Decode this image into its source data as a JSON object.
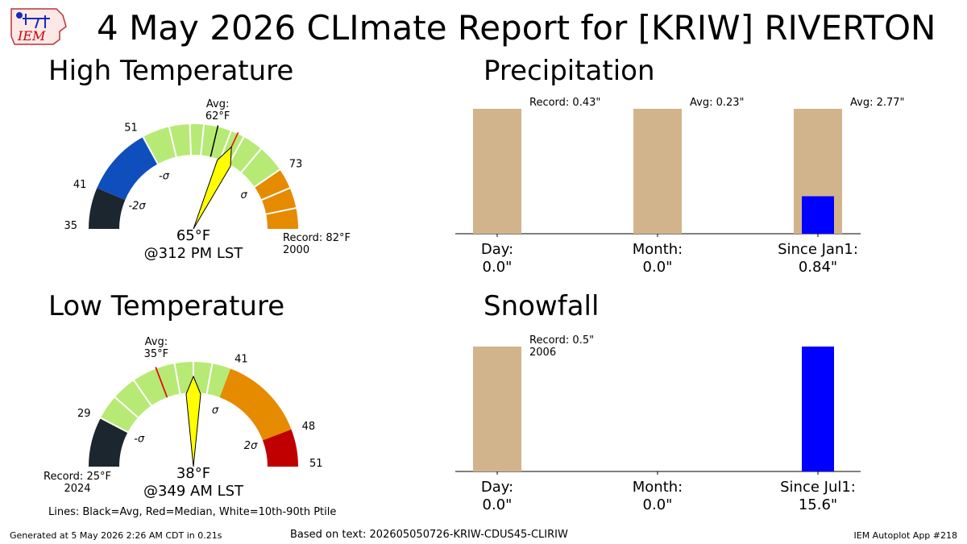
{
  "title": "4 May 2026 CLImate Report for [KRIW] RIVERTON",
  "logo_text": "IEM",
  "footer": {
    "generated": "Generated at 5 May 2026 2:26 AM CDT in 0.21s",
    "based_on": "Based on text: 202605050726-KRIW-CDUS45-CLIRIW",
    "app": "IEM Autoplot App #218",
    "lines_note": "Lines: Black=Avg, Red=Median, White=10th-90th Ptile"
  },
  "colors": {
    "below_2sigma": "#1c262f",
    "below_1sigma": "#0f4fbd",
    "near_avg": "#b6ea75",
    "above_1sigma": "#e68a00",
    "above_2sigma": "#c00000",
    "needle": "#ffff00",
    "bar_normal": "#d2b48c",
    "bar_observed": "#0000ff",
    "avg_line": "#000000",
    "median_line": "#ff0000",
    "pctile_line": "#ffffff"
  },
  "chart_data": [
    {
      "type": "gauge",
      "title": "High Temperature",
      "min": 35,
      "max": 82,
      "value": 65,
      "value_label": "65°F",
      "time_label": "@312 PM LST",
      "avg": 62,
      "avg_label": "Avg:\n62°F",
      "median": 65,
      "bands": [
        {
          "from": 35,
          "to": 41,
          "color": "#1c262f"
        },
        {
          "from": 41,
          "to": 51,
          "color": "#0f4fbd"
        },
        {
          "from": 51,
          "to": 73,
          "color": "#b6ea75"
        },
        {
          "from": 73,
          "to": 82,
          "color": "#e68a00"
        }
      ],
      "percentiles": [
        51,
        55,
        58,
        60,
        64,
        66,
        69,
        73,
        76,
        79
      ],
      "tick_labels": [
        {
          "value": 35,
          "text": "35"
        },
        {
          "value": 41,
          "text": "41"
        },
        {
          "value": 51,
          "text": "51"
        },
        {
          "value": 73,
          "text": "73"
        }
      ],
      "sigma_labels": [
        {
          "value": 41,
          "text": "-2σ"
        },
        {
          "value": 51,
          "text": "-σ"
        },
        {
          "value": 73,
          "text": "σ"
        }
      ],
      "record_low_label": "",
      "record_high_label": "Record: 82°F\n2000"
    },
    {
      "type": "gauge",
      "title": "Low Temperature",
      "min": 25,
      "max": 51,
      "value": 38,
      "value_label": "38°F",
      "time_label": "@349 AM LST",
      "avg": 35,
      "avg_label": "Avg:\n35°F",
      "median": 35,
      "bands": [
        {
          "from": 25,
          "to": 29,
          "color": "#1c262f"
        },
        {
          "from": 29,
          "to": 41,
          "color": "#b6ea75"
        },
        {
          "from": 41,
          "to": 48,
          "color": "#e68a00"
        },
        {
          "from": 48,
          "to": 51,
          "color": "#c00000"
        }
      ],
      "percentiles": [
        29,
        31,
        33,
        36.5,
        38,
        39.5
      ],
      "tick_labels": [
        {
          "value": 29,
          "text": "29"
        },
        {
          "value": 41,
          "text": "41"
        },
        {
          "value": 48,
          "text": "48"
        },
        {
          "value": 51,
          "text": "51"
        }
      ],
      "sigma_labels": [
        {
          "value": 29,
          "text": "-σ"
        },
        {
          "value": 41,
          "text": "σ"
        },
        {
          "value": 48,
          "text": "2σ"
        }
      ],
      "record_low_label": "Record: 25°F\n2024",
      "record_high_label": ""
    },
    {
      "type": "bar",
      "title": "Precipitation",
      "ylim": [
        0,
        1
      ],
      "categories": [
        {
          "label": "Day:\n0.0\"",
          "normal": 1,
          "observed": 0,
          "annotation": "Record: 0.43\""
        },
        {
          "label": "Month:\n0.0\"",
          "normal": 1,
          "observed": 0,
          "annotation": "Avg: 0.23\""
        },
        {
          "label": "Since Jan1:\n0.84\"",
          "normal": 1,
          "observed": 0.3,
          "annotation": "Avg: 2.77\""
        }
      ]
    },
    {
      "type": "bar",
      "title": "Snowfall",
      "ylim": [
        0,
        1
      ],
      "categories": [
        {
          "label": "Day:\n0.0\"",
          "normal": 1,
          "observed": 0,
          "annotation": "Record: 0.5\"\n2006"
        },
        {
          "label": "Month:\n0.0\"",
          "normal": 0,
          "observed": 0,
          "annotation": ""
        },
        {
          "label": "Since Jul1:\n15.6\"",
          "normal": 0,
          "observed": 1,
          "annotation": ""
        }
      ]
    }
  ]
}
